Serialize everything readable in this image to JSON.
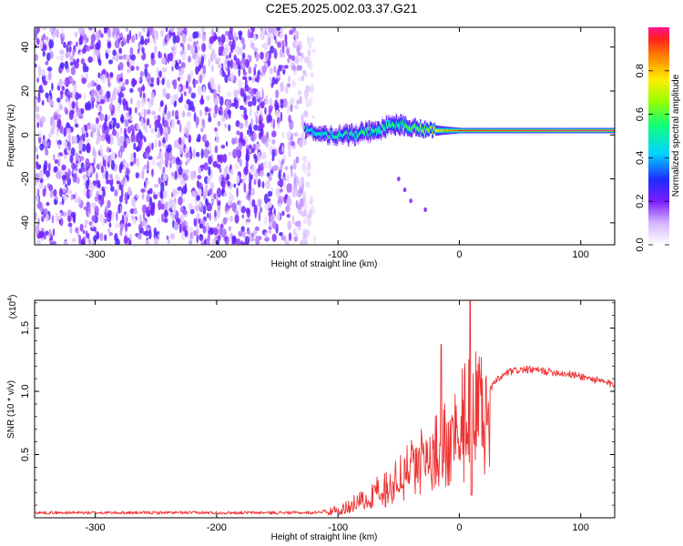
{
  "title": "C2E5.2025.002.03.37.G21",
  "chart_data": [
    {
      "type": "heatmap",
      "xlabel": "Height of straight line (km)",
      "ylabel": "Frequency (Hz)",
      "xlim": [
        -350,
        128
      ],
      "ylim": [
        -50,
        49
      ],
      "xticks": [
        -300,
        -200,
        -100,
        0,
        100
      ],
      "xtick_labels": [
        "-300",
        "-200",
        "-100",
        "0",
        "100"
      ],
      "yticks": [
        -40,
        -20,
        0,
        20,
        40
      ],
      "ytick_labels": [
        "-40",
        "-20",
        "0",
        "20",
        "40"
      ],
      "colorbar": {
        "label": "Normalized spectral amplitude",
        "range": [
          0,
          1
        ],
        "ticks": [
          0.0,
          0.2,
          0.4,
          0.6,
          0.8
        ],
        "tick_labels": [
          "0.0",
          "0.2",
          "0.4",
          "0.6",
          "0.8"
        ]
      },
      "tone": {
        "noise_region_end_km": -122,
        "onset_km": -128,
        "center_freq_hz": [
          [
            -128,
            2
          ],
          [
            -110,
            0
          ],
          [
            -90,
            0
          ],
          [
            -70,
            2
          ],
          [
            -50,
            5
          ],
          [
            -35,
            3
          ],
          [
            -20,
            2
          ],
          [
            0,
            2
          ],
          [
            20,
            2
          ],
          [
            128,
            2
          ]
        ],
        "halfwidth_hz": [
          [
            -128,
            3
          ],
          [
            -100,
            4
          ],
          [
            -50,
            4
          ],
          [
            -30,
            3
          ],
          [
            -15,
            2
          ],
          [
            0,
            1.2
          ],
          [
            128,
            1.2
          ]
        ],
        "peak_amplitude": [
          [
            -128,
            0.45
          ],
          [
            -90,
            0.5
          ],
          [
            -50,
            0.55
          ],
          [
            -20,
            0.75
          ],
          [
            0,
            0.95
          ],
          [
            128,
            1.0
          ]
        ],
        "stray_trail": [
          [
            -50,
            -20
          ],
          [
            -45,
            -25
          ],
          [
            -40,
            -30
          ],
          [
            -28,
            -34
          ]
        ]
      }
    },
    {
      "type": "line",
      "xlabel": "Height of straight line (km)",
      "ylabel": "SNR (10 * v/v)",
      "y_multiplier_label": "(x10",
      "y_multiplier_exp": "4",
      "y_multiplier_close": ")",
      "xlim": [
        -350,
        128
      ],
      "ylim": [
        0,
        1.72
      ],
      "xticks": [
        -300,
        -200,
        -100,
        0,
        100
      ],
      "xtick_labels": [
        "-300",
        "-200",
        "-100",
        "0",
        "100"
      ],
      "yticks": [
        0.5,
        1.0,
        1.5
      ],
      "ytick_labels": [
        "0.5",
        "1.0",
        "1.5"
      ],
      "color": "#ee3333",
      "envelope": {
        "x": [
          -350,
          -120,
          -100,
          -80,
          -60,
          -40,
          -30,
          -20,
          -10,
          0,
          10,
          20,
          30,
          40,
          50,
          60,
          80,
          100,
          128
        ],
        "y": [
          0.04,
          0.04,
          0.07,
          0.15,
          0.28,
          0.42,
          0.5,
          0.56,
          0.68,
          0.8,
          0.9,
          0.95,
          1.08,
          1.15,
          1.17,
          1.17,
          1.15,
          1.12,
          1.05
        ]
      },
      "noise_amplitude_fraction": 0.45,
      "spikes": [
        {
          "x": -15,
          "y": 1.37
        },
        {
          "x": 9,
          "y": 1.75
        },
        {
          "x": 10,
          "y": 0.18
        }
      ]
    }
  ]
}
